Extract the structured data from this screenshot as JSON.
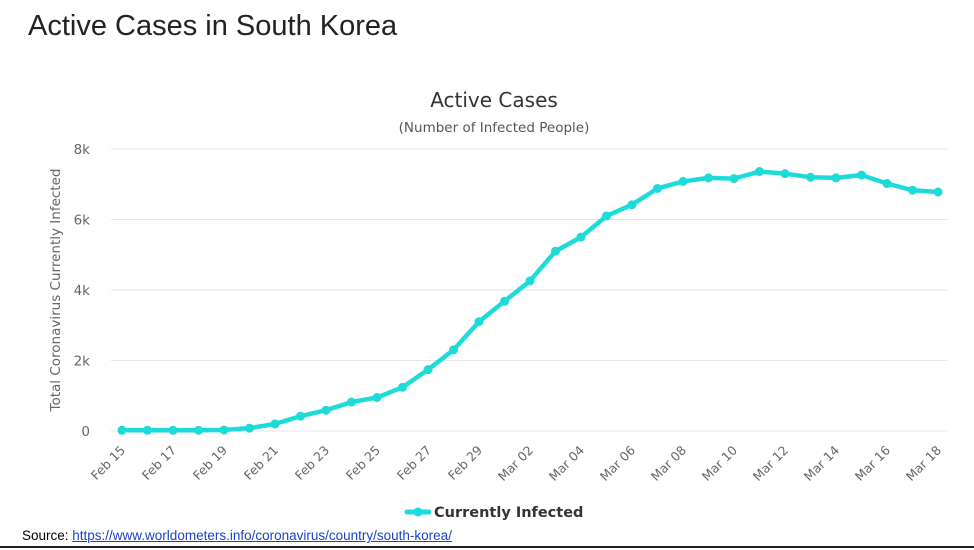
{
  "slide_title": "Active Cases in South Korea",
  "source": {
    "label": "Source: ",
    "url": "https://www.worldometers.info/coronavirus/country/south-korea/"
  },
  "colors": {
    "series": "#1ddbd8",
    "grid": "#e6e6e6",
    "axis_text": "#666666",
    "title_text": "#333333"
  },
  "chart_data": {
    "type": "line",
    "title": "Active Cases",
    "subtitle": "(Number of Infected People)",
    "ylabel": "Total Coronavirus Currently Infected",
    "xlabel": "",
    "ylim": [
      0,
      8000
    ],
    "yticks": [
      0,
      2000,
      4000,
      6000,
      8000
    ],
    "ytick_labels": [
      "0",
      "2k",
      "4k",
      "6k",
      "8k"
    ],
    "grid": true,
    "legend_position": "bottom-center",
    "x": [
      "Feb 15",
      "Feb 16",
      "Feb 17",
      "Feb 18",
      "Feb 19",
      "Feb 20",
      "Feb 21",
      "Feb 22",
      "Feb 23",
      "Feb 24",
      "Feb 25",
      "Feb 26",
      "Feb 27",
      "Feb 28",
      "Feb 29",
      "Mar 01",
      "Mar 02",
      "Mar 03",
      "Mar 04",
      "Mar 05",
      "Mar 06",
      "Mar 07",
      "Mar 08",
      "Mar 09",
      "Mar 10",
      "Mar 11",
      "Mar 12",
      "Mar 13",
      "Mar 14",
      "Mar 15",
      "Mar 16",
      "Mar 17",
      "Mar 18"
    ],
    "xtick_labels": [
      "Feb 15",
      "Feb 17",
      "Feb 19",
      "Feb 21",
      "Feb 23",
      "Feb 25",
      "Feb 27",
      "Feb 29",
      "Mar 02",
      "Mar 04",
      "Mar 06",
      "Mar 08",
      "Mar 10",
      "Mar 12",
      "Mar 14",
      "Mar 16",
      "Mar 18"
    ],
    "series": [
      {
        "name": "Currently Infected",
        "values": [
          20,
          20,
          20,
          20,
          30,
          80,
          200,
          420,
          590,
          820,
          950,
          1240,
          1740,
          2300,
          3100,
          3680,
          4260,
          5100,
          5500,
          6100,
          6420,
          6880,
          7080,
          7180,
          7160,
          7360,
          7300,
          7200,
          7180,
          7260,
          7020,
          6830,
          6780
        ]
      }
    ]
  }
}
